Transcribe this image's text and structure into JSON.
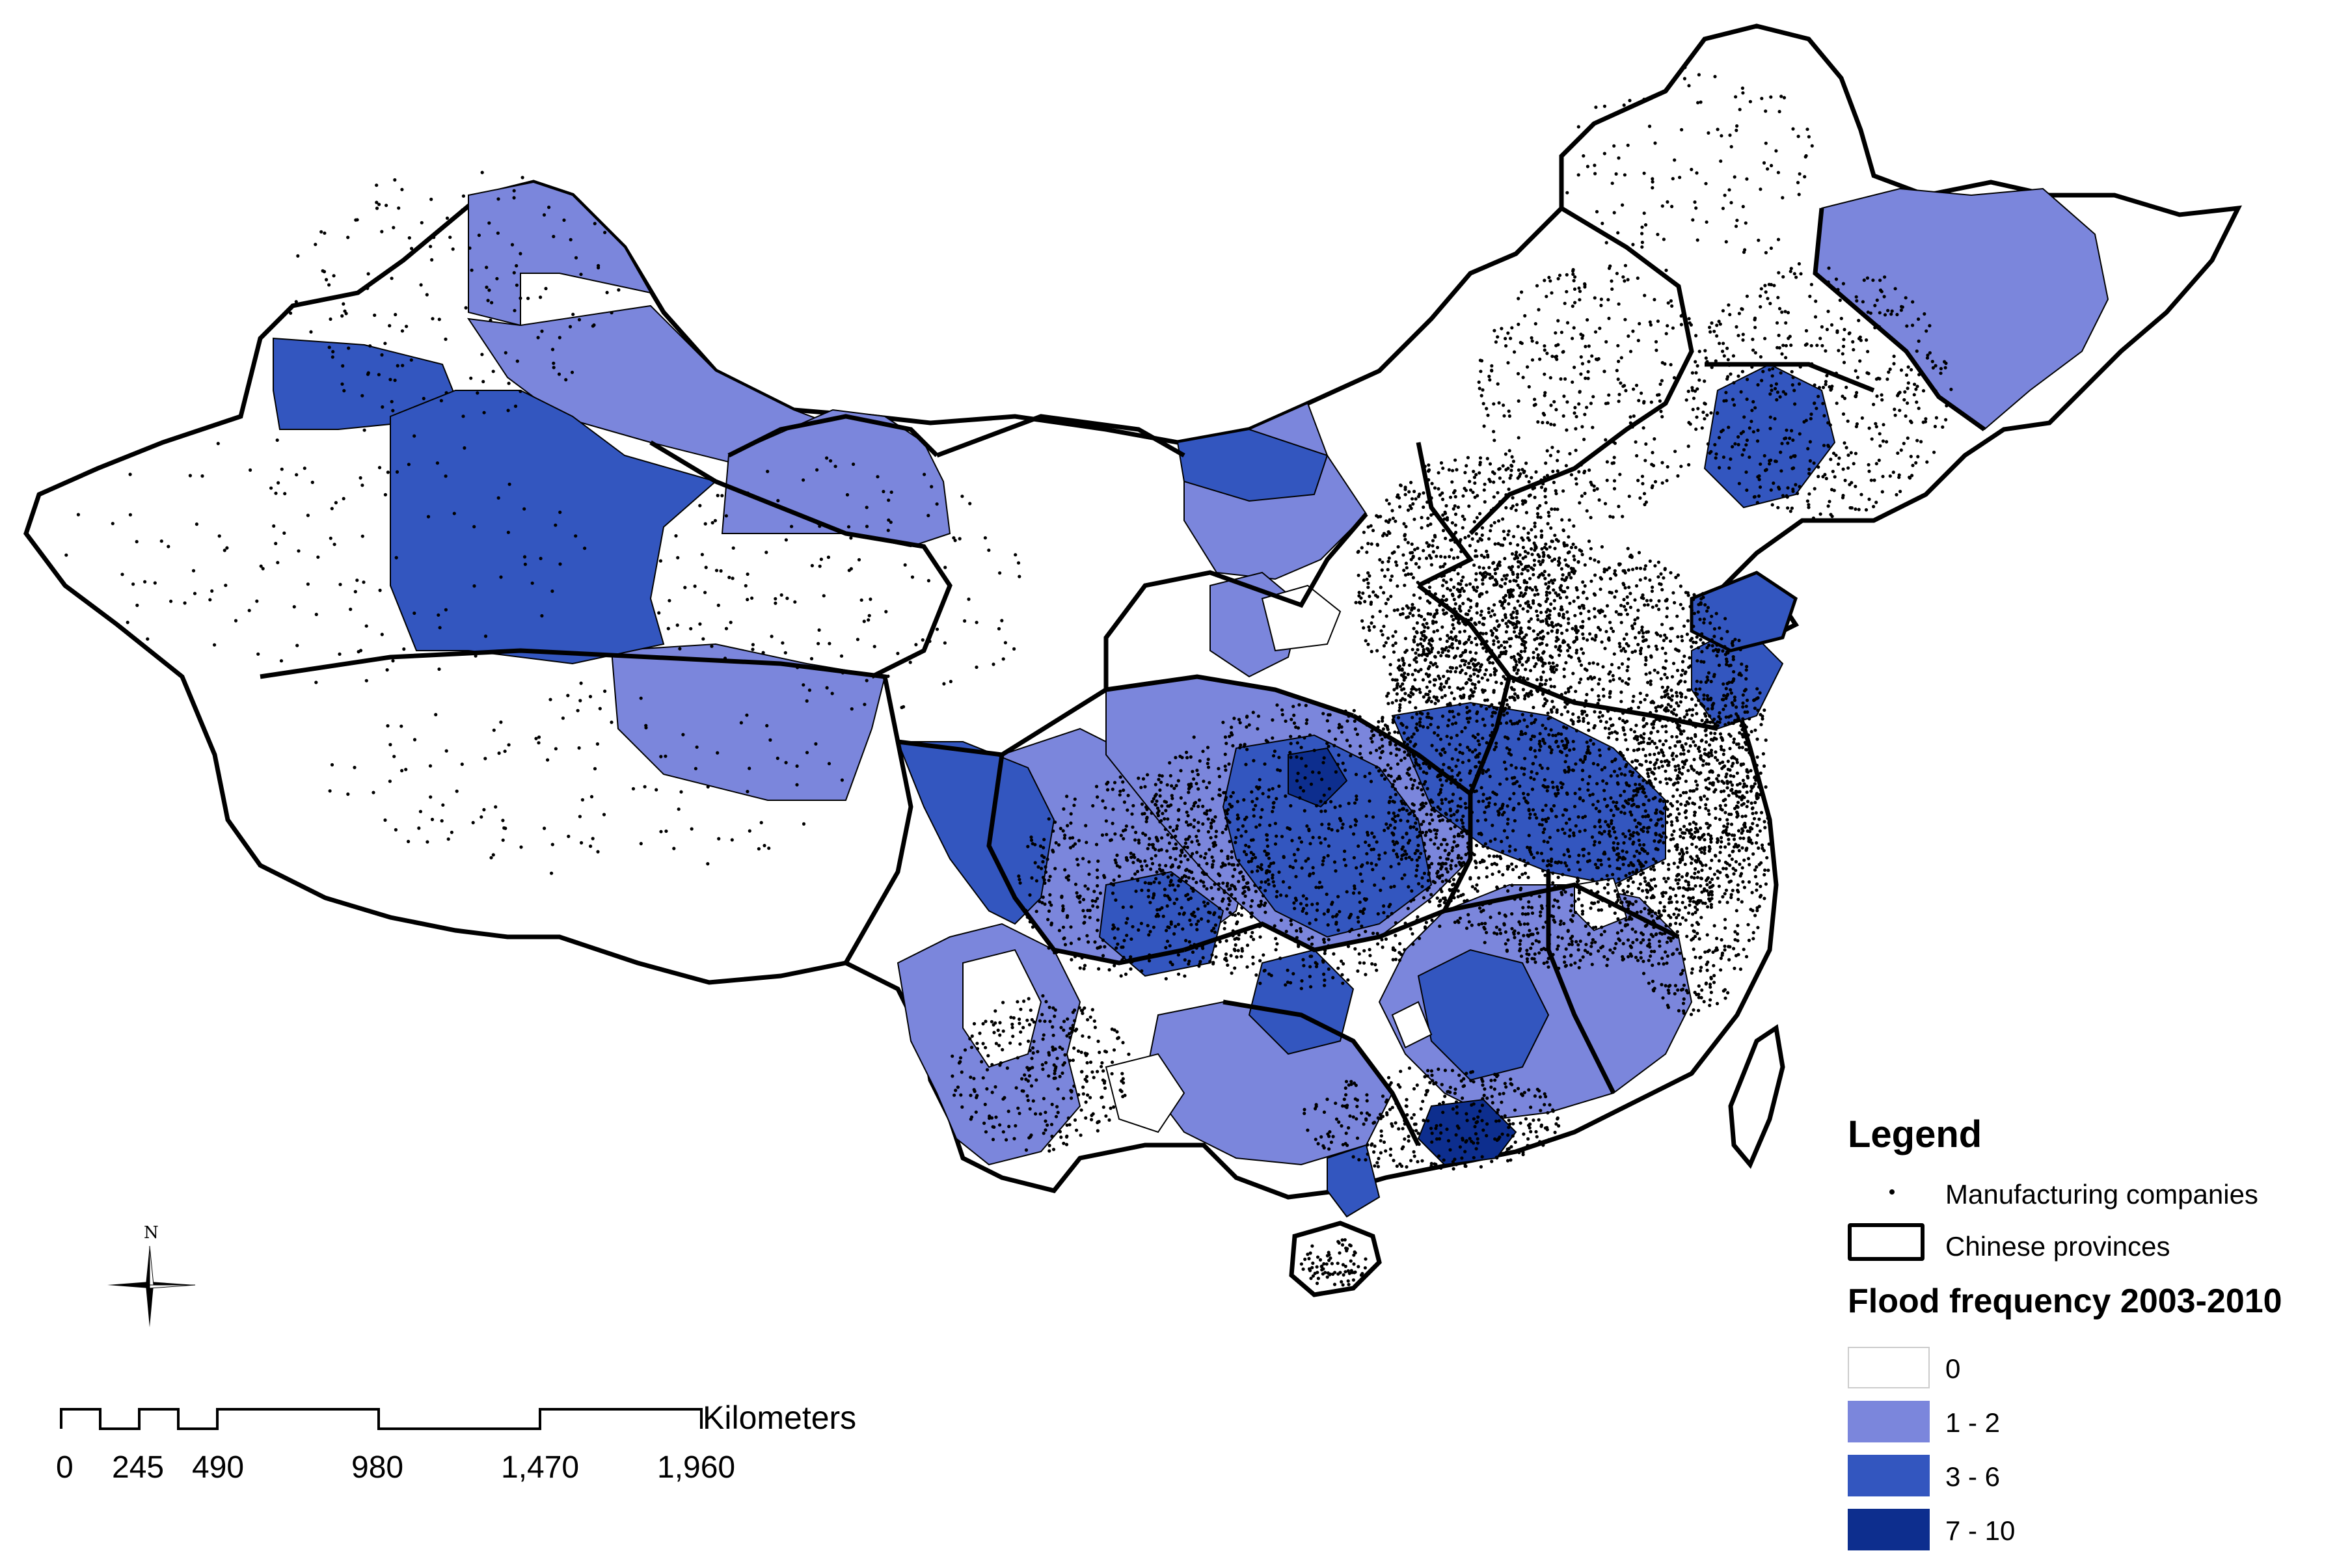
{
  "map": {
    "legend_title": "Legend",
    "symbols": {
      "companies_label": "Manufacturing companies",
      "provinces_label": "Chinese provinces"
    },
    "flood_title": "Flood frequency 2003-2010",
    "classes": [
      {
        "label": "0",
        "color": "#ffffff"
      },
      {
        "label": "1 - 2",
        "color": "#7b86dc"
      },
      {
        "label": "3 - 6",
        "color": "#3356bf"
      },
      {
        "label": "7 - 10",
        "color": "#0d2e8e"
      }
    ],
    "scale": {
      "units": "Kilometers",
      "ticks": [
        "0",
        "245",
        "490",
        "980",
        "1,470",
        "1,960"
      ]
    },
    "north_label": "N"
  }
}
